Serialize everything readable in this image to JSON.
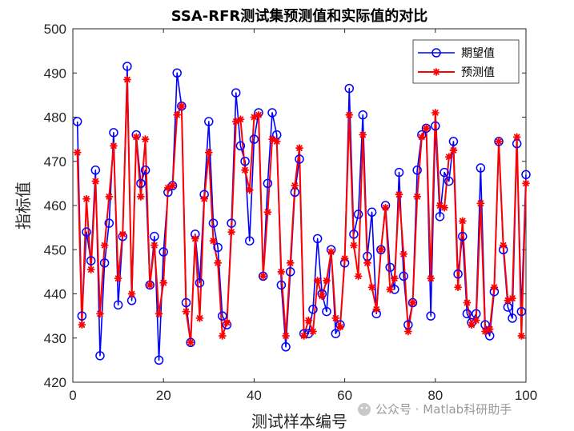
{
  "chart_data": {
    "type": "line",
    "title": "SSA-RFR测试集预测值和实际值的对比",
    "xlabel": "测试样本编号",
    "ylabel": "指标值",
    "xlim": [
      0,
      100
    ],
    "ylim": [
      420,
      500
    ],
    "xticks": [
      "0",
      "20",
      "40",
      "60",
      "80",
      "100"
    ],
    "yticks": [
      "420",
      "430",
      "440",
      "450",
      "460",
      "470",
      "480",
      "490",
      "500"
    ],
    "grid": false,
    "legend_position": "top-right",
    "x": [
      1,
      2,
      3,
      4,
      5,
      6,
      7,
      8,
      9,
      10,
      11,
      12,
      13,
      14,
      15,
      16,
      17,
      18,
      19,
      20,
      21,
      22,
      23,
      24,
      25,
      26,
      27,
      28,
      29,
      30,
      31,
      32,
      33,
      34,
      35,
      36,
      37,
      38,
      39,
      40,
      41,
      42,
      43,
      44,
      45,
      46,
      47,
      48,
      49,
      50,
      51,
      52,
      53,
      54,
      55,
      56,
      57,
      58,
      59,
      60,
      61,
      62,
      63,
      64,
      65,
      66,
      67,
      68,
      69,
      70,
      71,
      72,
      73,
      74,
      75,
      76,
      77,
      78,
      79,
      80,
      81,
      82,
      83,
      84,
      85,
      86,
      87,
      88,
      89,
      90,
      91,
      92,
      93,
      94,
      95,
      96,
      97,
      98,
      99,
      100
    ],
    "series": [
      {
        "name": "期望值",
        "color": "#0000ff",
        "marker": "circle",
        "values": [
          479,
          435,
          454,
          447.5,
          468,
          426,
          447,
          456,
          476.5,
          437.5,
          453,
          491.5,
          438.5,
          476,
          465,
          468,
          442,
          453,
          425,
          449.5,
          463,
          464.5,
          490,
          482.5,
          438,
          429,
          453.5,
          442.5,
          462.5,
          479,
          456,
          450.5,
          435,
          433,
          456,
          485.5,
          473.5,
          470,
          452,
          475,
          481,
          444,
          465,
          481,
          476,
          442,
          428,
          445,
          463,
          470.5,
          431,
          431,
          436.5,
          452.5,
          440,
          436,
          450,
          431,
          433,
          447,
          486.5,
          453.5,
          458,
          480.5,
          448.5,
          458.5,
          435.5,
          450,
          460,
          446,
          441,
          467.5,
          444,
          433,
          438,
          468,
          476,
          477.5,
          435,
          478,
          457.5,
          467.5,
          465.5,
          474.5,
          444.5,
          453,
          435.5,
          433.5,
          435.5,
          468.5,
          433,
          430.5,
          440.5,
          474.5,
          450,
          437,
          434.5,
          474,
          436,
          467
        ]
      },
      {
        "name": "预测值",
        "color": "#ff0000",
        "marker": "asterisk",
        "values": [
          472,
          433,
          461.5,
          445.5,
          465.5,
          435.5,
          451,
          462,
          473.5,
          443.5,
          453.5,
          488.5,
          440,
          475.5,
          462,
          475,
          442,
          451,
          435.5,
          442.5,
          464,
          464.5,
          480.5,
          482.5,
          436,
          429,
          452.5,
          434.5,
          461.5,
          472,
          452,
          447,
          430.5,
          433.5,
          454,
          479,
          479.5,
          468,
          463.5,
          480,
          480.5,
          444,
          458.5,
          475,
          474.5,
          445,
          430.5,
          447,
          464.5,
          473,
          430.5,
          434,
          431.5,
          443,
          439.5,
          443,
          449.5,
          434.5,
          432.5,
          448,
          480.5,
          451,
          444,
          476,
          447,
          441.5,
          436.5,
          450,
          459.5,
          441,
          443.5,
          462.5,
          449,
          431.5,
          438,
          462,
          475.5,
          477.5,
          443.5,
          481,
          460,
          459.5,
          471,
          472.5,
          441.5,
          456.5,
          438,
          433,
          434,
          460.5,
          431.5,
          432,
          441.5,
          474.5,
          451,
          438.5,
          439,
          475.5,
          430.5,
          465
        ]
      }
    ]
  },
  "watermark": "公众号 · Matlab科研助手"
}
